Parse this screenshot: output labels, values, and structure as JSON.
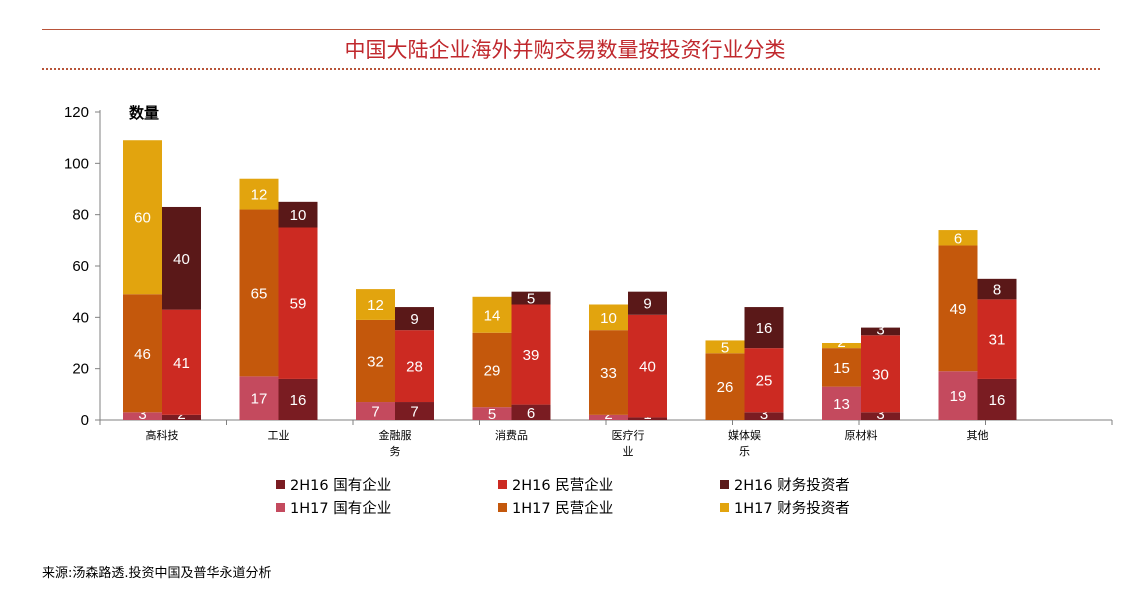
{
  "title": "中国大陆企业海外并购交易数量按投资行业分类",
  "source": "来源:汤森路透.投资中国及普华永道分析",
  "chart_data": {
    "type": "bar",
    "stacked": true,
    "ylabel": "数量",
    "ylim": [
      0,
      120
    ],
    "yticks": [
      0,
      20,
      40,
      60,
      80,
      100,
      120
    ],
    "grid": false,
    "legend_position": "bottom",
    "categories": [
      "高科技",
      "工业",
      "金融服务",
      "消费品",
      "医疗行业",
      "媒体娱乐",
      "原材料",
      "其他"
    ],
    "category_lines": [
      [
        "高科技"
      ],
      [
        "工业"
      ],
      [
        "金融服",
        "务"
      ],
      [
        "消费品"
      ],
      [
        "医疗行",
        "业"
      ],
      [
        "媒体娱",
        "乐"
      ],
      [
        "原材料"
      ],
      [
        "其他"
      ]
    ],
    "groups": [
      {
        "name": "1H17",
        "series": [
          {
            "name": "1H17 国有企业",
            "color": "#c44a5e",
            "values": [
              3,
              17,
              7,
              5,
              2,
              0,
              13,
              19
            ]
          },
          {
            "name": "1H17 民营企业",
            "color": "#c4580c",
            "values": [
              46,
              65,
              32,
              29,
              33,
              26,
              15,
              49
            ]
          },
          {
            "name": "1H17 财务投资者",
            "color": "#e2a40e",
            "values": [
              60,
              12,
              12,
              14,
              10,
              5,
              2,
              6
            ]
          }
        ]
      },
      {
        "name": "2H16",
        "series": [
          {
            "name": "2H16 国有企业",
            "color": "#7a1c22",
            "values": [
              2,
              16,
              7,
              6,
              1,
              3,
              3,
              16
            ]
          },
          {
            "name": "2H16 民营企业",
            "color": "#cc2a22",
            "values": [
              41,
              59,
              28,
              39,
              40,
              25,
              30,
              31
            ]
          },
          {
            "name": "2H16 财务投资者",
            "color": "#5a1818",
            "values": [
              40,
              10,
              9,
              5,
              9,
              16,
              3,
              8
            ]
          }
        ]
      }
    ],
    "legend": [
      {
        "label": "2H16 国有企业",
        "color": "#7a1c22"
      },
      {
        "label": "2H16 民营企业",
        "color": "#cc2a22"
      },
      {
        "label": "2H16 财务投资者",
        "color": "#5a1818"
      },
      {
        "label": "1H17 国有企业",
        "color": "#c44a5e"
      },
      {
        "label": "1H17 民营企业",
        "color": "#c4580c"
      },
      {
        "label": "1H17 财务投资者",
        "color": "#e2a40e"
      }
    ]
  }
}
